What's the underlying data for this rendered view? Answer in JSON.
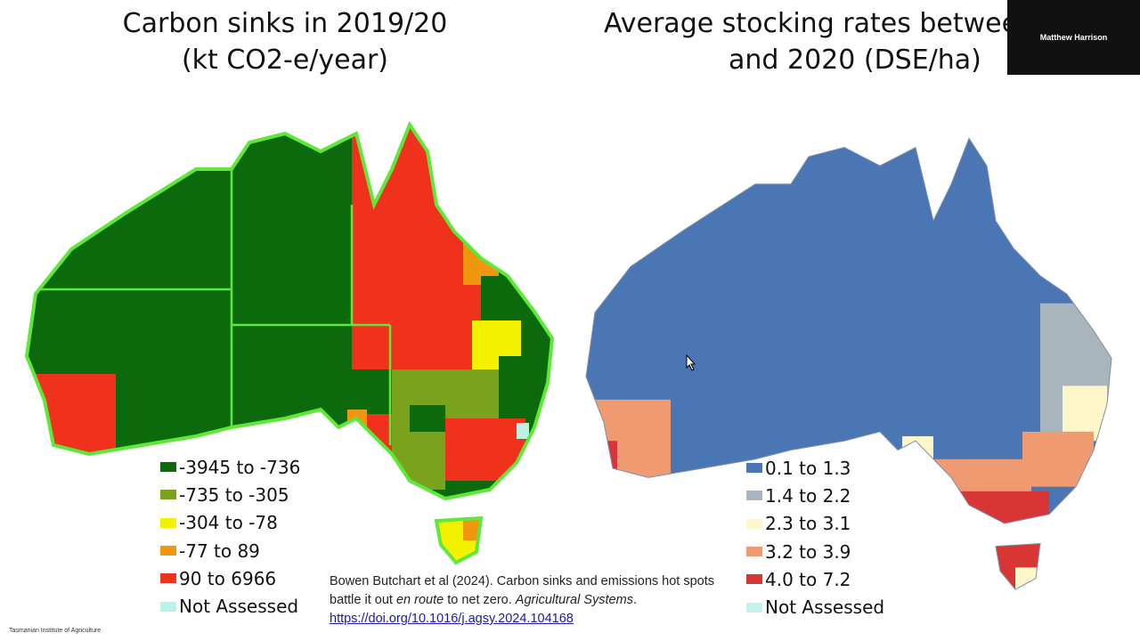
{
  "slide": {
    "left_map": {
      "title": [
        "Carbon sinks in 2019/20",
        "(kt CO2-e/year)"
      ],
      "legend": [
        {
          "label": "-3945 to -736",
          "color": "#0b6a0b"
        },
        {
          "label": "-735 to -305",
          "color": "#7aa21c"
        },
        {
          "label": "-304 to -78",
          "color": "#f2f200"
        },
        {
          "label": "-77 to 89",
          "color": "#f0960f"
        },
        {
          "label": "90 to 6966",
          "color": "#f0321c"
        },
        {
          "label": "Not Assessed",
          "color": "#bff0e8"
        }
      ]
    },
    "right_map": {
      "title": [
        "Average stocking rates betwee",
        "and 2020 (DSE/ha)"
      ],
      "legend": [
        {
          "label": "0.1 to 1.3",
          "color": "#4a76b4"
        },
        {
          "label": "1.4 to 2.2",
          "color": "#a9b5bd"
        },
        {
          "label": "2.3 to 3.1",
          "color": "#fdf6c8"
        },
        {
          "label": "3.2 to 3.9",
          "color": "#ef9a70"
        },
        {
          "label": "4.0 to 7.2",
          "color": "#d83535"
        },
        {
          "label": "Not Assessed",
          "color": "#c6f0ea"
        }
      ]
    },
    "citation": {
      "text1": "Bowen Butchart et al (2024). Carbon sinks and emissions hot spots battle it out ",
      "italic1": "en route",
      "text2": " to net zero. ",
      "journal": "Agricultural Systems",
      "text3": ".",
      "link": "https://doi.org/10.1016/j.agsy.2024.104168"
    },
    "participant": {
      "name": "Matthew Harrison"
    },
    "footer": "Tasmanian Institute of Agriculture"
  }
}
